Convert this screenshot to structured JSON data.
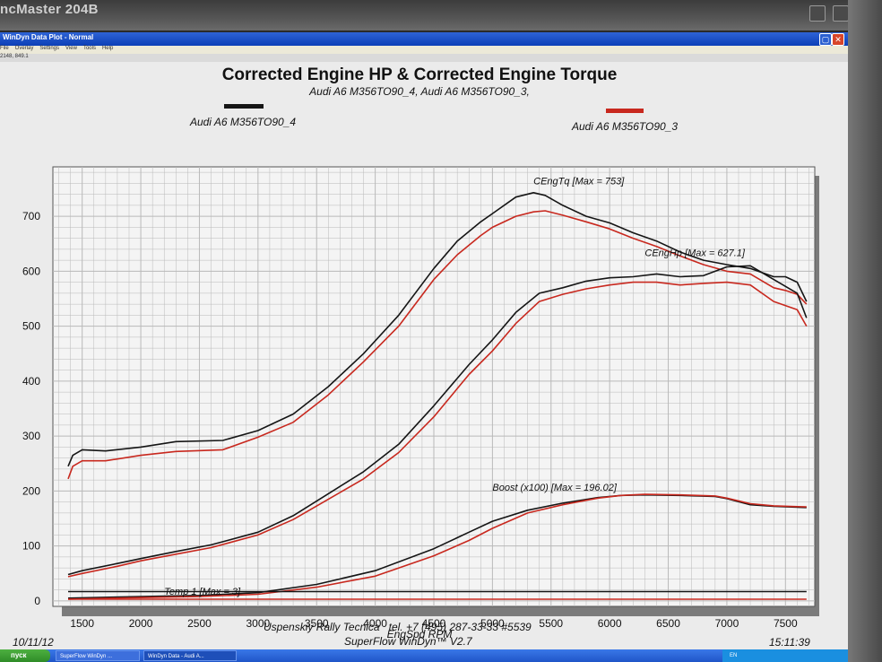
{
  "monitor_brand": "ncMaster 204B",
  "window": {
    "title": "WinDyn Data Plot - Normal",
    "menu": [
      "File",
      "Overlay",
      "Settings",
      "View",
      "Tools",
      "Help"
    ],
    "coords": "2148, 849.1"
  },
  "header": {
    "title": "Corrected Engine HP & Corrected Engine Torque",
    "subtitle": "Audi A6 M356TO90_4, Audi A6 M356TO90_3,"
  },
  "footer": {
    "date": "10/11/12",
    "time": "15:11:39",
    "company": "Uspenskiy Rally Tecnica   tel. +7 (495) 287-33-33 #5539",
    "software": "SuperFlow WinDyn™ V2.7"
  },
  "taskbar": {
    "start": "пуск",
    "items": [
      "SuperFlow WinDyn ...",
      "WinDyn Data - Audi A..."
    ],
    "lang": "EN"
  },
  "colors": {
    "run4": "#151515",
    "run3": "#c8281e"
  },
  "chart_data": {
    "type": "line",
    "title": "Corrected Engine HP & Corrected Engine Torque",
    "subtitle": "Audi A6 M356TO90_4, Audi A6 M356TO90_3,",
    "xlabel": "EngSpd RPM",
    "ylabel": "",
    "xlim": [
      1250,
      7750
    ],
    "ylim": [
      -10,
      790
    ],
    "xticks": [
      1500,
      2000,
      2500,
      3000,
      3500,
      4000,
      4500,
      5000,
      5500,
      6000,
      6500,
      7000,
      7500
    ],
    "yticks": [
      0,
      100,
      200,
      300,
      400,
      500,
      600,
      700
    ],
    "grid": true,
    "legend": [
      {
        "name": "Audi A6 M356TO90_4",
        "color": "#151515"
      },
      {
        "name": "Audi A6 M356TO90_3",
        "color": "#c8281e"
      }
    ],
    "annotations": [
      {
        "text": "CEngTq [Max = 753]",
        "x": 5350,
        "y": 755
      },
      {
        "text": "CEngHp [Max = 627.1]",
        "x": 6300,
        "y": 624
      },
      {
        "text": "Boost (x100) [Max = 196.02]",
        "x": 5000,
        "y": 196
      },
      {
        "text": "Temp 1 [Max = 3]",
        "x": 2200,
        "y": 6
      }
    ],
    "series": [
      {
        "name": "CEngTq Audi A6 M356TO90_4",
        "run": "run4",
        "x": [
          1380,
          1420,
          1500,
          1700,
          2000,
          2300,
          2700,
          3000,
          3300,
          3600,
          3900,
          4200,
          4500,
          4700,
          4900,
          5000,
          5200,
          5350,
          5450,
          5600,
          5800,
          6000,
          6200,
          6400,
          6600,
          6800,
          7000,
          7200,
          7400,
          7500,
          7600,
          7680
        ],
        "y": [
          245,
          265,
          275,
          273,
          280,
          290,
          292,
          310,
          340,
          390,
          450,
          520,
          605,
          655,
          690,
          705,
          735,
          743,
          738,
          720,
          700,
          688,
          670,
          655,
          635,
          620,
          612,
          605,
          590,
          590,
          580,
          545
        ]
      },
      {
        "name": "CEngTq Audi A6 M356TO90_3",
        "run": "run3",
        "x": [
          1380,
          1420,
          1500,
          1700,
          2000,
          2300,
          2700,
          3000,
          3300,
          3600,
          3900,
          4200,
          4500,
          4700,
          4900,
          5000,
          5200,
          5350,
          5450,
          5600,
          5800,
          6000,
          6200,
          6400,
          6600,
          6800,
          7000,
          7200,
          7400,
          7500,
          7600,
          7680
        ],
        "y": [
          222,
          245,
          255,
          255,
          265,
          272,
          275,
          298,
          325,
          375,
          435,
          500,
          585,
          630,
          665,
          680,
          700,
          708,
          710,
          702,
          690,
          677,
          660,
          645,
          628,
          612,
          600,
          595,
          570,
          565,
          558,
          540
        ]
      },
      {
        "name": "CEngHp Audi A6 M356TO90_4",
        "run": "run4",
        "x": [
          1380,
          1500,
          1800,
          2000,
          2300,
          2600,
          3000,
          3300,
          3600,
          3900,
          4200,
          4500,
          4800,
          5000,
          5200,
          5400,
          5600,
          5800,
          6000,
          6200,
          6400,
          6600,
          6800,
          7000,
          7200,
          7400,
          7600,
          7680
        ],
        "y": [
          48,
          55,
          68,
          77,
          90,
          102,
          125,
          155,
          195,
          235,
          285,
          355,
          430,
          475,
          525,
          560,
          570,
          582,
          588,
          590,
          595,
          590,
          592,
          608,
          610,
          585,
          560,
          515
        ]
      },
      {
        "name": "CEngHp Audi A6 M356TO90_3",
        "run": "run3",
        "x": [
          1380,
          1500,
          1800,
          2000,
          2300,
          2600,
          3000,
          3300,
          3600,
          3900,
          4200,
          4500,
          4800,
          5000,
          5200,
          5400,
          5600,
          5800,
          6000,
          6200,
          6400,
          6600,
          6800,
          7000,
          7200,
          7400,
          7600,
          7680
        ],
        "y": [
          44,
          50,
          63,
          73,
          85,
          97,
          120,
          148,
          185,
          222,
          270,
          335,
          412,
          455,
          505,
          545,
          558,
          568,
          575,
          580,
          580,
          575,
          578,
          580,
          575,
          545,
          530,
          500
        ]
      },
      {
        "name": "Boost (x100) Audi A6 M356TO90_4",
        "run": "run4",
        "x": [
          1380,
          2000,
          2500,
          3000,
          3500,
          4000,
          4500,
          4800,
          5000,
          5300,
          5600,
          5900,
          6100,
          6300,
          6600,
          6900,
          7000,
          7200,
          7400,
          7680
        ],
        "y": [
          5,
          8,
          10,
          15,
          30,
          55,
          95,
          125,
          145,
          165,
          178,
          188,
          192,
          193,
          192,
          190,
          186,
          175,
          172,
          170
        ]
      },
      {
        "name": "Boost (x100) Audi A6 M356TO90_3",
        "run": "run3",
        "x": [
          1380,
          2000,
          2500,
          3000,
          3500,
          4000,
          4500,
          4800,
          5000,
          5300,
          5600,
          5900,
          6100,
          6300,
          6600,
          6900,
          7000,
          7200,
          7400,
          7680
        ],
        "y": [
          3,
          6,
          8,
          12,
          25,
          45,
          82,
          110,
          132,
          160,
          175,
          187,
          192,
          194,
          193,
          191,
          187,
          177,
          173,
          171
        ]
      },
      {
        "name": "Temp 1 Audi A6 M356TO90_4",
        "run": "run4",
        "x": [
          1380,
          7680
        ],
        "y": [
          17,
          17
        ]
      },
      {
        "name": "Temp 1 Audi A6 M356TO90_3",
        "run": "run3",
        "x": [
          1380,
          7680
        ],
        "y": [
          3,
          3
        ]
      }
    ]
  }
}
